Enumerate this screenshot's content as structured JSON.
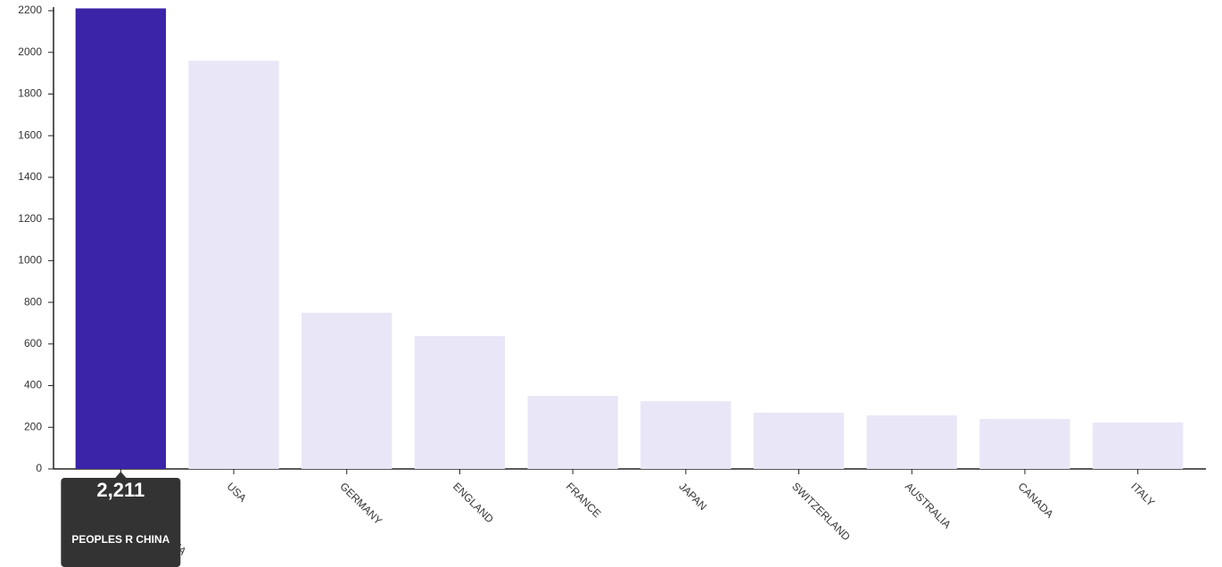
{
  "chart_data": {
    "type": "bar",
    "categories": [
      "PEOPLES R CHINA",
      "USA",
      "GERMANY",
      "ENGLAND",
      "FRANCE",
      "JAPAN",
      "SWITZERLAND",
      "AUSTRALIA",
      "CANADA",
      "ITALY"
    ],
    "values": [
      2211,
      1960,
      750,
      638,
      351,
      325,
      270,
      257,
      240,
      223
    ],
    "color": "#e9e6f7",
    "highlight_color": "#3b24a8",
    "highlight_index": 0,
    "tooltip": {
      "value_label": "2,211"
    },
    "ylim": [
      0,
      2200
    ],
    "yticks": [
      0,
      200,
      400,
      600,
      800,
      1000,
      1200,
      1400,
      1600,
      1800,
      2000,
      2200
    ]
  }
}
